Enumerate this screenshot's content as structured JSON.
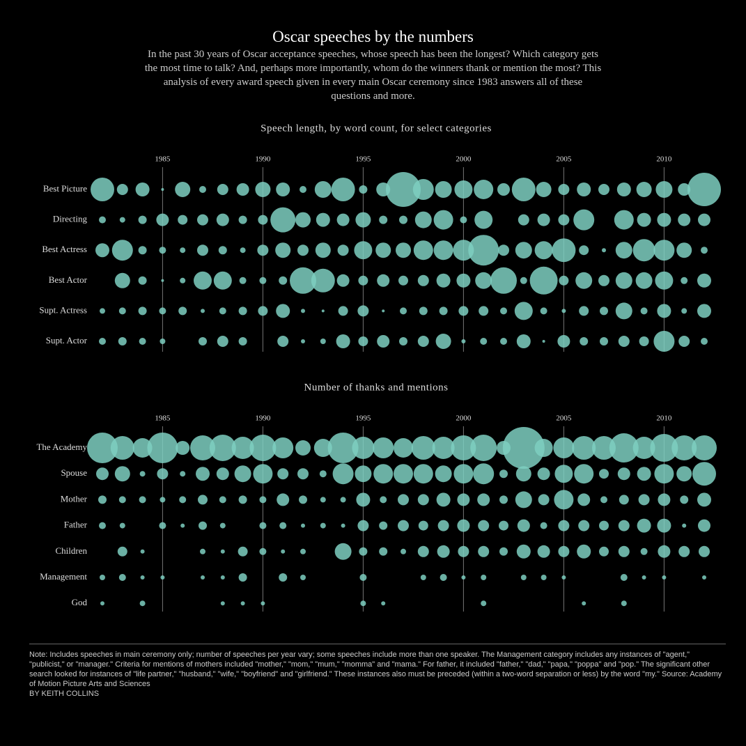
{
  "header": {
    "title": "Oscar speeches by the numbers",
    "subtitle": "In the past 30 years of Oscar acceptance speeches, whose speech has been the longest? Which category gets the most time to talk? And, perhaps more importantly, whom do the winners thank or mention the most? This analysis of every award speech given in every main Oscar ceremony since 1983 answers all of these questions and more."
  },
  "chart_data": [
    {
      "type": "bubble",
      "title": "Speech length, by word count, for select categories",
      "x": [
        1982,
        1983,
        1984,
        1985,
        1986,
        1987,
        1988,
        1989,
        1990,
        1991,
        1992,
        1993,
        1994,
        1995,
        1996,
        1997,
        1998,
        1999,
        2000,
        2001,
        2002,
        2003,
        2004,
        2005,
        2006,
        2007,
        2008,
        2009,
        2010,
        2011,
        2012
      ],
      "xlim": [
        1982,
        2012
      ],
      "xticks": [
        1985,
        1990,
        1995,
        2000,
        2005,
        2010
      ],
      "color": "#7ecfc1",
      "series": [
        {
          "name": "Best Picture",
          "values": [
            289,
            64,
            100,
            4,
            121,
            25,
            64,
            81,
            121,
            100,
            25,
            144,
            289,
            36,
            100,
            625,
            225,
            144,
            169,
            196,
            81,
            289,
            121,
            64,
            100,
            64,
            100,
            121,
            144,
            81,
            576
          ]
        },
        {
          "name": "Directing",
          "values": [
            25,
            16,
            36,
            81,
            49,
            64,
            81,
            36,
            49,
            324,
            121,
            100,
            81,
            121,
            36,
            36,
            144,
            196,
            25,
            169,
            null,
            64,
            81,
            64,
            225,
            null,
            196,
            100,
            100,
            81,
            81
          ]
        },
        {
          "name": "Best Actress",
          "values": [
            100,
            225,
            36,
            25,
            16,
            64,
            36,
            16,
            64,
            121,
            64,
            121,
            64,
            169,
            121,
            121,
            196,
            196,
            225,
            484,
            64,
            144,
            169,
            289,
            49,
            9,
            144,
            256,
            225,
            121,
            25
          ]
        },
        {
          "name": "Best Actor",
          "values": [
            null,
            121,
            36,
            4,
            16,
            169,
            169,
            25,
            25,
            36,
            361,
            289,
            81,
            49,
            81,
            49,
            64,
            100,
            100,
            144,
            361,
            25,
            400,
            49,
            144,
            64,
            144,
            144,
            169,
            25,
            100
          ]
        },
        {
          "name": "Supt. Actress",
          "values": [
            16,
            25,
            36,
            25,
            36,
            9,
            25,
            36,
            49,
            100,
            9,
            4,
            49,
            64,
            4,
            25,
            36,
            36,
            49,
            49,
            25,
            169,
            25,
            9,
            49,
            36,
            144,
            25,
            100,
            16,
            100
          ]
        },
        {
          "name": "Supt. Actor",
          "values": [
            25,
            36,
            25,
            16,
            null,
            36,
            64,
            36,
            null,
            64,
            9,
            16,
            100,
            49,
            81,
            36,
            64,
            121,
            9,
            25,
            25,
            100,
            4,
            81,
            36,
            36,
            64,
            49,
            225,
            64,
            25
          ]
        }
      ]
    },
    {
      "type": "bubble",
      "title": "Number of thanks and mentions",
      "x": [
        1982,
        1983,
        1984,
        1985,
        1986,
        1987,
        1988,
        1989,
        1990,
        1991,
        1992,
        1993,
        1994,
        1995,
        1996,
        1997,
        1998,
        1999,
        2000,
        2001,
        2002,
        2003,
        2004,
        2005,
        2006,
        2007,
        2008,
        2009,
        2010,
        2011,
        2012
      ],
      "xlim": [
        1982,
        2012
      ],
      "xticks": [
        1985,
        1990,
        1995,
        2000,
        2005,
        2010
      ],
      "color": "#7ecfc1",
      "series": [
        {
          "name": "The Academy",
          "values": [
            484,
            289,
            196,
            484,
            100,
            324,
            361,
            256,
            361,
            225,
            121,
            169,
            484,
            256,
            225,
            196,
            289,
            256,
            324,
            361,
            100,
            900,
            169,
            225,
            289,
            289,
            441,
            256,
            400,
            324,
            324
          ]
        },
        {
          "name": "Spouse",
          "values": [
            81,
            121,
            16,
            64,
            16,
            100,
            81,
            144,
            196,
            64,
            64,
            25,
            225,
            144,
            196,
            196,
            196,
            144,
            196,
            225,
            36,
            121,
            81,
            169,
            196,
            49,
            81,
            100,
            196,
            121,
            289
          ]
        },
        {
          "name": "Mother",
          "values": [
            36,
            25,
            25,
            16,
            25,
            49,
            25,
            36,
            25,
            81,
            36,
            16,
            16,
            100,
            25,
            64,
            64,
            100,
            81,
            81,
            36,
            144,
            64,
            196,
            81,
            25,
            49,
            64,
            81,
            36,
            100
          ]
        },
        {
          "name": "Father",
          "values": [
            25,
            16,
            null,
            25,
            9,
            36,
            16,
            null,
            25,
            25,
            9,
            16,
            9,
            64,
            36,
            64,
            49,
            64,
            81,
            64,
            49,
            81,
            25,
            64,
            64,
            49,
            64,
            100,
            100,
            9,
            81
          ]
        },
        {
          "name": "Children",
          "values": [
            null,
            49,
            9,
            null,
            null,
            16,
            9,
            49,
            25,
            9,
            16,
            null,
            144,
            36,
            36,
            16,
            64,
            81,
            64,
            64,
            36,
            100,
            81,
            64,
            100,
            49,
            64,
            25,
            81,
            64,
            64
          ]
        },
        {
          "name": "Management",
          "values": [
            16,
            25,
            9,
            9,
            null,
            9,
            9,
            36,
            null,
            36,
            16,
            null,
            null,
            25,
            null,
            null,
            16,
            25,
            9,
            16,
            null,
            16,
            16,
            9,
            null,
            null,
            25,
            9,
            9,
            null,
            9
          ]
        },
        {
          "name": "God",
          "values": [
            9,
            null,
            16,
            null,
            null,
            null,
            9,
            9,
            9,
            null,
            null,
            null,
            null,
            16,
            9,
            null,
            null,
            null,
            null,
            16,
            null,
            null,
            null,
            null,
            9,
            null,
            16,
            null,
            null,
            null,
            null
          ]
        }
      ]
    }
  ],
  "footer": {
    "note": "Note: Includes speeches in main ceremony only; number of speeches per year vary; some speeches include more than one speaker. The Management category includes any instances of \"agent,\" \"publicist,\" or \"manager.\" Criteria for mentions of mothers included \"mother,\" \"mom,\" \"mum,\" \"momma\" and \"mama.\" For father, it included \"father,\" \"dad,\" \"papa,\" \"poppa\" and \"pop.\" The significant other search looked for instances of \"life partner,\" \"husband,\" \"wife,\" \"boyfriend\" and \"girlfriend.\" These instances also must be preceded (within a two-word separation or less) by the word \"my.\" Source: Academy of Motion Picture Arts and Sciences",
    "byline": "BY KEITH COLLINS"
  }
}
